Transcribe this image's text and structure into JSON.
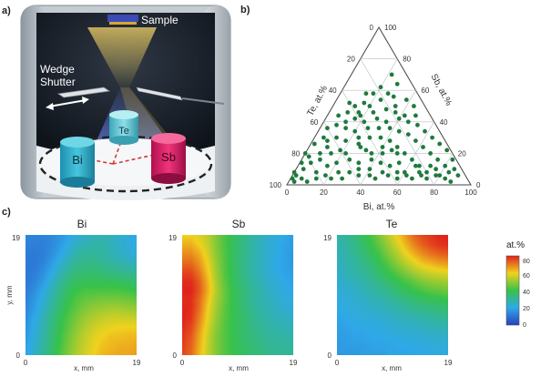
{
  "panels": {
    "a": {
      "label": "a)",
      "sample": "Sample",
      "wedge": "Wedge",
      "shutter": "Shutter",
      "targets": [
        {
          "name": "Bi",
          "color": "#35b8cf"
        },
        {
          "name": "Te",
          "color": "#5fc6d3"
        },
        {
          "name": "Sb",
          "color": "#e0286e"
        }
      ]
    },
    "b": {
      "label": "b)"
    },
    "c": {
      "label": "c)"
    }
  },
  "ternary": {
    "left_axis": "Te, at.%",
    "right_axis": "Sb, at.%",
    "bottom_axis": "Bi, at.%",
    "ticks": [
      "0",
      "20",
      "40",
      "60",
      "80",
      "100"
    ],
    "point_color": "#1f7a3e"
  },
  "heatmaps": {
    "titles": [
      "Bi",
      "Sb",
      "Te"
    ],
    "y_axis_label": "y, mm",
    "x_axis_labels": [
      "x, mm",
      "x, mm",
      "x, mm"
    ],
    "tick_min": "0",
    "tick_max": "19",
    "colorbar": {
      "title": "at.%",
      "ticks": [
        "80",
        "60",
        "40",
        "20",
        "0"
      ]
    }
  },
  "chart_data": [
    {
      "type": "scatter",
      "title": "",
      "axes": {
        "left": "Te, at.%",
        "right": "Sb, at.%",
        "bottom": "Bi, at.%"
      },
      "range": [
        0,
        100
      ],
      "points_bi_sb_te": [
        [
          0,
          8,
          92
        ],
        [
          2,
          6,
          92
        ],
        [
          1,
          14,
          85
        ],
        [
          4,
          10,
          86
        ],
        [
          0,
          20,
          80
        ],
        [
          3,
          18,
          79
        ],
        [
          6,
          14,
          80
        ],
        [
          8,
          20,
          72
        ],
        [
          2,
          26,
          72
        ],
        [
          5,
          30,
          65
        ],
        [
          10,
          24,
          66
        ],
        [
          12,
          30,
          58
        ],
        [
          4,
          36,
          60
        ],
        [
          8,
          38,
          54
        ],
        [
          14,
          36,
          50
        ],
        [
          16,
          42,
          42
        ],
        [
          6,
          44,
          50
        ],
        [
          10,
          46,
          44
        ],
        [
          18,
          28,
          54
        ],
        [
          20,
          34,
          46
        ],
        [
          22,
          40,
          38
        ],
        [
          12,
          50,
          38
        ],
        [
          8,
          52,
          40
        ],
        [
          16,
          52,
          32
        ],
        [
          24,
          46,
          30
        ],
        [
          20,
          50,
          30
        ],
        [
          26,
          36,
          38
        ],
        [
          28,
          42,
          30
        ],
        [
          14,
          58,
          28
        ],
        [
          18,
          58,
          24
        ],
        [
          30,
          30,
          40
        ],
        [
          32,
          36,
          32
        ],
        [
          24,
          54,
          22
        ],
        [
          30,
          48,
          22
        ],
        [
          34,
          40,
          26
        ],
        [
          36,
          30,
          34
        ],
        [
          20,
          62,
          18
        ],
        [
          26,
          58,
          16
        ],
        [
          38,
          36,
          26
        ],
        [
          40,
          42,
          18
        ],
        [
          34,
          50,
          16
        ],
        [
          28,
          64,
          8
        ],
        [
          22,
          70,
          8
        ],
        [
          42,
          28,
          30
        ],
        [
          44,
          34,
          22
        ],
        [
          46,
          40,
          14
        ],
        [
          38,
          54,
          8
        ],
        [
          48,
          24,
          28
        ],
        [
          50,
          32,
          18
        ],
        [
          52,
          38,
          10
        ],
        [
          44,
          50,
          6
        ],
        [
          54,
          20,
          26
        ],
        [
          56,
          28,
          16
        ],
        [
          58,
          34,
          8
        ],
        [
          60,
          16,
          24
        ],
        [
          62,
          24,
          14
        ],
        [
          64,
          30,
          6
        ],
        [
          66,
          12,
          22
        ],
        [
          68,
          20,
          12
        ],
        [
          70,
          26,
          4
        ],
        [
          72,
          8,
          20
        ],
        [
          74,
          16,
          10
        ],
        [
          76,
          22,
          2
        ],
        [
          78,
          6,
          16
        ],
        [
          80,
          12,
          8
        ],
        [
          82,
          16,
          2
        ],
        [
          84,
          4,
          12
        ],
        [
          86,
          10,
          4
        ],
        [
          88,
          2,
          10
        ],
        [
          90,
          6,
          4
        ],
        [
          74,
          4,
          22
        ],
        [
          70,
          6,
          24
        ],
        [
          66,
          4,
          30
        ],
        [
          62,
          6,
          32
        ],
        [
          58,
          4,
          38
        ],
        [
          56,
          8,
          36
        ],
        [
          52,
          6,
          42
        ],
        [
          48,
          8,
          44
        ],
        [
          46,
          4,
          50
        ],
        [
          42,
          6,
          52
        ],
        [
          40,
          10,
          50
        ],
        [
          36,
          6,
          58
        ],
        [
          34,
          10,
          56
        ],
        [
          30,
          8,
          62
        ],
        [
          28,
          4,
          68
        ],
        [
          24,
          8,
          68
        ],
        [
          22,
          4,
          74
        ],
        [
          18,
          6,
          76
        ],
        [
          14,
          4,
          82
        ],
        [
          12,
          8,
          80
        ],
        [
          10,
          2,
          88
        ],
        [
          16,
          12,
          72
        ],
        [
          20,
          14,
          66
        ],
        [
          26,
          16,
          58
        ],
        [
          32,
          14,
          54
        ],
        [
          38,
          16,
          46
        ],
        [
          44,
          14,
          42
        ],
        [
          50,
          12,
          38
        ],
        [
          54,
          14,
          32
        ],
        [
          60,
          8,
          32
        ],
        [
          64,
          12,
          24
        ],
        [
          68,
          8,
          24
        ],
        [
          72,
          12,
          16
        ],
        [
          76,
          10,
          14
        ],
        [
          80,
          6,
          14
        ],
        [
          84,
          8,
          8
        ],
        [
          6,
          4,
          90
        ],
        [
          3,
          2,
          95
        ],
        [
          1,
          4,
          95
        ],
        [
          18,
          44,
          38
        ],
        [
          24,
          30,
          46
        ],
        [
          28,
          24,
          48
        ],
        [
          32,
          22,
          46
        ],
        [
          36,
          20,
          44
        ],
        [
          40,
          24,
          36
        ],
        [
          46,
          22,
          32
        ],
        [
          50,
          20,
          30
        ],
        [
          42,
          20,
          38
        ],
        [
          26,
          26,
          48
        ],
        [
          22,
          20,
          58
        ],
        [
          18,
          22,
          60
        ],
        [
          14,
          20,
          66
        ],
        [
          10,
          16,
          74
        ],
        [
          8,
          28,
          64
        ],
        [
          12,
          40,
          48
        ],
        [
          16,
          46,
          38
        ],
        [
          30,
          56,
          14
        ],
        [
          36,
          46,
          18
        ],
        [
          42,
          44,
          14
        ],
        [
          48,
          44,
          8
        ]
      ]
    },
    {
      "type": "heatmap",
      "title": "Bi",
      "xlabel": "x, mm",
      "ylabel": "y, mm",
      "x_range": [
        0,
        19
      ],
      "y_range": [
        0,
        19
      ],
      "value_range": [
        0,
        80
      ],
      "rows_top_to_bottom": [
        [
          14,
          13,
          13,
          14,
          16,
          19,
          22,
          24,
          26,
          27,
          26,
          24,
          22,
          20
        ],
        [
          13,
          12,
          12,
          14,
          17,
          21,
          25,
          27,
          28,
          28,
          26,
          24,
          22,
          20
        ],
        [
          12,
          11,
          12,
          15,
          19,
          24,
          28,
          30,
          30,
          29,
          27,
          25,
          23,
          22
        ],
        [
          11,
          11,
          13,
          17,
          22,
          27,
          31,
          32,
          32,
          31,
          29,
          28,
          26,
          25
        ],
        [
          11,
          12,
          15,
          20,
          26,
          31,
          34,
          35,
          35,
          34,
          33,
          32,
          31,
          30
        ],
        [
          11,
          13,
          17,
          23,
          29,
          34,
          37,
          38,
          38,
          38,
          38,
          37,
          36,
          35
        ],
        [
          12,
          15,
          20,
          26,
          32,
          37,
          40,
          42,
          42,
          42,
          42,
          42,
          41,
          40
        ],
        [
          13,
          17,
          22,
          28,
          34,
          39,
          43,
          45,
          46,
          47,
          47,
          47,
          46,
          45
        ],
        [
          14,
          18,
          24,
          30,
          36,
          41,
          45,
          48,
          50,
          51,
          52,
          52,
          51,
          50
        ],
        [
          15,
          20,
          26,
          32,
          38,
          43,
          47,
          51,
          53,
          55,
          56,
          56,
          56,
          55
        ],
        [
          16,
          21,
          27,
          33,
          39,
          44,
          49,
          53,
          56,
          58,
          59,
          60,
          60,
          60
        ],
        [
          17,
          22,
          28,
          34,
          40,
          46,
          51,
          55,
          58,
          60,
          62,
          62,
          63,
          63
        ],
        [
          18,
          23,
          29,
          35,
          41,
          47,
          52,
          56,
          59,
          62,
          63,
          64,
          64,
          65
        ],
        [
          19,
          24,
          30,
          36,
          42,
          48,
          53,
          57,
          60,
          63,
          64,
          65,
          65,
          66
        ]
      ]
    },
    {
      "type": "heatmap",
      "title": "Sb",
      "xlabel": "x, mm",
      "ylabel": "",
      "x_range": [
        0,
        19
      ],
      "y_range": [
        0,
        19
      ],
      "value_range": [
        0,
        80
      ],
      "rows_top_to_bottom": [
        [
          60,
          60,
          58,
          54,
          48,
          42,
          38,
          34,
          30,
          26,
          24,
          22,
          20,
          18
        ],
        [
          64,
          64,
          60,
          55,
          48,
          42,
          37,
          33,
          29,
          26,
          23,
          21,
          19,
          18
        ],
        [
          68,
          68,
          64,
          57,
          49,
          43,
          37,
          33,
          29,
          26,
          23,
          21,
          19,
          17
        ],
        [
          72,
          72,
          67,
          59,
          50,
          43,
          37,
          33,
          29,
          26,
          23,
          20,
          19,
          17
        ],
        [
          76,
          76,
          70,
          61,
          51,
          43,
          38,
          33,
          29,
          26,
          23,
          21,
          19,
          18
        ],
        [
          79,
          79,
          73,
          63,
          52,
          44,
          38,
          34,
          30,
          27,
          24,
          22,
          20,
          19
        ],
        [
          80,
          80,
          74,
          64,
          53,
          45,
          39,
          35,
          31,
          28,
          25,
          23,
          21,
          20
        ],
        [
          79,
          79,
          72,
          62,
          52,
          45,
          39,
          35,
          31,
          28,
          26,
          24,
          22,
          21
        ],
        [
          80,
          79,
          71,
          60,
          51,
          44,
          39,
          35,
          32,
          29,
          27,
          25,
          23,
          22
        ],
        [
          80,
          78,
          69,
          59,
          50,
          44,
          39,
          36,
          33,
          30,
          28,
          26,
          25,
          24
        ],
        [
          79,
          76,
          67,
          57,
          49,
          43,
          39,
          36,
          33,
          31,
          29,
          28,
          27,
          26
        ],
        [
          78,
          74,
          65,
          56,
          48,
          43,
          39,
          36,
          34,
          32,
          30,
          29,
          28,
          28
        ],
        [
          77,
          73,
          64,
          55,
          48,
          43,
          39,
          37,
          35,
          33,
          31,
          30,
          30,
          29
        ],
        [
          76,
          72,
          63,
          55,
          48,
          43,
          40,
          37,
          35,
          34,
          32,
          31,
          31,
          30
        ]
      ]
    },
    {
      "type": "heatmap",
      "title": "Te",
      "xlabel": "x, mm",
      "ylabel": "",
      "x_range": [
        0,
        19
      ],
      "y_range": [
        0,
        19
      ],
      "value_range": [
        0,
        80
      ],
      "rows_top_to_bottom": [
        [
          28,
          30,
          34,
          38,
          42,
          48,
          54,
          60,
          66,
          72,
          76,
          78,
          80,
          80
        ],
        [
          27,
          29,
          32,
          36,
          40,
          45,
          51,
          57,
          63,
          69,
          73,
          76,
          78,
          79
        ],
        [
          26,
          28,
          31,
          34,
          38,
          42,
          48,
          53,
          59,
          64,
          68,
          71,
          73,
          74
        ],
        [
          25,
          27,
          29,
          32,
          35,
          39,
          44,
          49,
          54,
          58,
          62,
          64,
          66,
          67
        ],
        [
          24,
          26,
          28,
          30,
          33,
          36,
          40,
          44,
          48,
          52,
          55,
          57,
          58,
          59
        ],
        [
          23,
          25,
          26,
          28,
          30,
          33,
          36,
          39,
          42,
          45,
          48,
          50,
          51,
          52
        ],
        [
          22,
          23,
          24,
          26,
          28,
          30,
          32,
          35,
          38,
          40,
          42,
          44,
          45,
          46
        ],
        [
          21,
          22,
          23,
          24,
          26,
          27,
          29,
          31,
          33,
          35,
          37,
          38,
          39,
          40
        ],
        [
          20,
          21,
          22,
          23,
          24,
          25,
          26,
          28,
          29,
          31,
          32,
          33,
          34,
          35
        ],
        [
          19,
          20,
          21,
          22,
          22,
          23,
          24,
          25,
          26,
          27,
          28,
          29,
          30,
          31
        ],
        [
          18,
          19,
          20,
          20,
          21,
          21,
          22,
          23,
          24,
          24,
          25,
          26,
          27,
          27
        ],
        [
          18,
          18,
          19,
          19,
          20,
          20,
          21,
          21,
          22,
          22,
          23,
          23,
          24,
          24
        ],
        [
          17,
          18,
          18,
          18,
          19,
          19,
          19,
          20,
          20,
          21,
          21,
          22,
          22,
          22
        ],
        [
          17,
          17,
          17,
          18,
          18,
          18,
          19,
          19,
          19,
          20,
          20,
          20,
          21,
          21
        ]
      ]
    }
  ]
}
